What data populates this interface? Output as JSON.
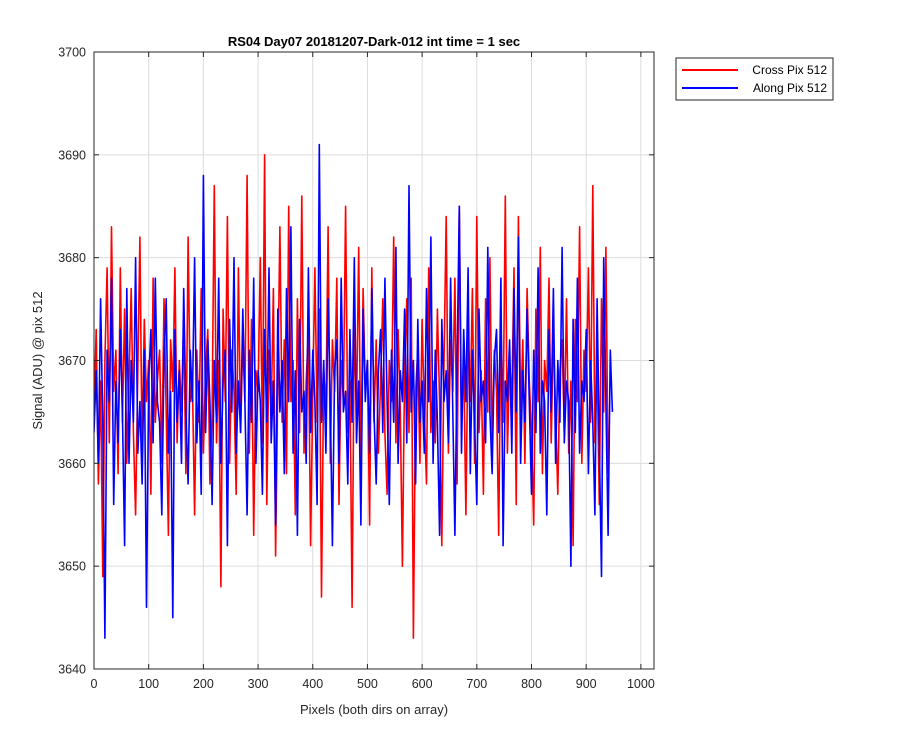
{
  "chart_data": {
    "type": "line",
    "title": "RS04 Day07 20181207-Dark-012 int time = 1 sec",
    "xlabel": "Pixels (both dirs on array)",
    "ylabel": "Signal (ADU) @ pix 512",
    "xlim": [
      0,
      1024
    ],
    "ylim": [
      3640,
      3700
    ],
    "xticks": [
      "0",
      "100",
      "200",
      "300",
      "400",
      "500",
      "600",
      "700",
      "800",
      "900",
      "1000"
    ],
    "yticks": [
      "3640",
      "3650",
      "3660",
      "3670",
      "3680",
      "3690",
      "3700"
    ],
    "grid": true,
    "legend_position": "outside-top-right",
    "x_step": 4,
    "series": [
      {
        "name": "Cross Pix 512",
        "color": "#ff0000",
        "values": [
          3665,
          3673,
          3658,
          3668,
          3649,
          3670,
          3679,
          3662,
          3683,
          3667,
          3671,
          3659,
          3679,
          3664,
          3675,
          3660,
          3668,
          3677,
          3663,
          3655,
          3669,
          3682,
          3661,
          3674,
          3666,
          3670,
          3657,
          3678,
          3664,
          3668,
          3671,
          3660,
          3676,
          3665,
          3653,
          3672,
          3667,
          3679,
          3662,
          3670,
          3665,
          3674,
          3659,
          3682,
          3666,
          3668,
          3655,
          3671,
          3664,
          3677,
          3661,
          3669,
          3673,
          3658,
          3665,
          3687,
          3662,
          3670,
          3648,
          3675,
          3666,
          3684,
          3660,
          3671,
          3667,
          3657,
          3679,
          3663,
          3672,
          3666,
          3688,
          3661,
          3674,
          3653,
          3669,
          3667,
          3680,
          3662,
          3690,
          3656,
          3671,
          3665,
          3677,
          3651,
          3668,
          3683,
          3664,
          3672,
          3659,
          3685,
          3666,
          3670,
          3655,
          3676,
          3663,
          3686,
          3661,
          3668,
          3673,
          3652,
          3667,
          3679,
          3664,
          3675,
          3647,
          3669,
          3665,
          3683,
          3660,
          3672,
          3667,
          3678,
          3656,
          3670,
          3666,
          3685,
          3663,
          3668,
          3646,
          3674,
          3665,
          3681,
          3659,
          3677,
          3667,
          3670,
          3654,
          3679,
          3664,
          3672,
          3661,
          3668,
          3676,
          3663,
          3657,
          3670,
          3666,
          3682,
          3662,
          3673,
          3665,
          3650,
          3669,
          3676,
          3663,
          3678,
          3643,
          3667,
          3671,
          3660,
          3674,
          3665,
          3658,
          3679,
          3663,
          3668,
          3662,
          3675,
          3666,
          3652,
          3670,
          3684,
          3661,
          3672,
          3667,
          3678,
          3658,
          3685,
          3664,
          3670,
          3655,
          3673,
          3666,
          3677,
          3660,
          3684,
          3663,
          3669,
          3657,
          3676,
          3665,
          3680,
          3662,
          3671,
          3667,
          3653,
          3674,
          3664,
          3686,
          3661,
          3670,
          3666,
          3679,
          3656,
          3684,
          3665,
          3672,
          3660,
          3677,
          3668,
          3663,
          3654,
          3675,
          3666,
          3681,
          3659,
          3670,
          3667,
          3678,
          3662,
          3673,
          3665,
          3657,
          3669,
          3672,
          3663,
          3676,
          3661,
          3668,
          3652,
          3674,
          3666,
          3683,
          3660,
          3671,
          3667,
          3679,
          3664,
          3687,
          3662,
          3670,
          3656,
          3676,
          3665,
          3681,
          3659
        ]
      },
      {
        "name": "Along Pix 512",
        "color": "#0000ff",
        "values": [
          3663,
          3669,
          3660,
          3676,
          3664,
          3643,
          3671,
          3666,
          3678,
          3656,
          3668,
          3662,
          3673,
          3665,
          3652,
          3677,
          3660,
          3670,
          3664,
          3680,
          3661,
          3666,
          3658,
          3671,
          3646,
          3668,
          3673,
          3662,
          3678,
          3666,
          3664,
          3655,
          3670,
          3676,
          3661,
          3667,
          3645,
          3673,
          3664,
          3669,
          3660,
          3677,
          3665,
          3658,
          3671,
          3666,
          3680,
          3662,
          3668,
          3657,
          3688,
          3663,
          3672,
          3666,
          3656,
          3670,
          3664,
          3678,
          3660,
          3668,
          3671,
          3652,
          3674,
          3665,
          3680,
          3661,
          3668,
          3663,
          3675,
          3666,
          3655,
          3671,
          3664,
          3678,
          3660,
          3669,
          3666,
          3657,
          3673,
          3664,
          3679,
          3662,
          3668,
          3654,
          3675,
          3665,
          3670,
          3659,
          3677,
          3666,
          3683,
          3661,
          3669,
          3653,
          3674,
          3665,
          3667,
          3660,
          3679,
          3663,
          3671,
          3666,
          3656,
          3691,
          3664,
          3670,
          3661,
          3676,
          3666,
          3652,
          3669,
          3672,
          3660,
          3678,
          3665,
          3667,
          3658,
          3673,
          3664,
          3680,
          3662,
          3668,
          3654,
          3675,
          3666,
          3670,
          3661,
          3677,
          3665,
          3658,
          3669,
          3673,
          3663,
          3678,
          3666,
          3656,
          3671,
          3664,
          3681,
          3660,
          3669,
          3666,
          3675,
          3662,
          3687,
          3665,
          3670,
          3658,
          3674,
          3664,
          3668,
          3661,
          3677,
          3666,
          3682,
          3660,
          3671,
          3664,
          3653,
          3674,
          3666,
          3669,
          3662,
          3678,
          3665,
          3653,
          3670,
          3685,
          3661,
          3673,
          3666,
          3679,
          3659,
          3671,
          3664,
          3656,
          3675,
          3666,
          3668,
          3662,
          3681,
          3665,
          3659,
          3670,
          3673,
          3663,
          3678,
          3652,
          3668,
          3666,
          3672,
          3661,
          3677,
          3665,
          3682,
          3660,
          3669,
          3664,
          3675,
          3666,
          3657,
          3671,
          3663,
          3679,
          3661,
          3668,
          3666,
          3655,
          3673,
          3665,
          3677,
          3660,
          3670,
          3664,
          3681,
          3662,
          3668,
          3666,
          3650,
          3674,
          3663,
          3678,
          3661,
          3668,
          3666,
          3673,
          3659,
          3670,
          3664,
          3655,
          3676,
          3662,
          3649,
          3680,
          3666,
          3653,
          3671,
          3665
        ]
      }
    ]
  }
}
